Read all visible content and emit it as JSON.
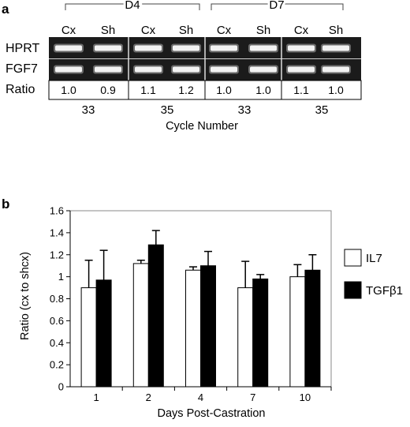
{
  "panel_a": {
    "letter": "a",
    "groups": [
      "D4",
      "D7"
    ],
    "lanes": [
      "Cx",
      "Sh",
      "Cx",
      "Sh",
      "Cx",
      "Sh",
      "Cx",
      "Sh"
    ],
    "row_labels": [
      "HPRT",
      "FGF7"
    ],
    "ratio_label": "Ratio",
    "ratios": [
      "1.0",
      "0.9",
      "1.1",
      "1.2",
      "1.0",
      "1.0",
      "1.1",
      "1.0"
    ],
    "cycles": [
      "33",
      "35",
      "33",
      "35"
    ],
    "cycle_axis_label": "Cycle Number"
  },
  "panel_b": {
    "letter": "b"
  },
  "chart_data": {
    "type": "bar",
    "categories": [
      "1",
      "2",
      "4",
      "7",
      "10"
    ],
    "series": [
      {
        "name": "IL7",
        "values": [
          0.9,
          1.12,
          1.06,
          0.9,
          1.0
        ],
        "errors": [
          0.25,
          0.03,
          0.03,
          0.24,
          0.11
        ],
        "color": "#ffffff"
      },
      {
        "name": "TGFβ1",
        "values": [
          0.97,
          1.29,
          1.1,
          0.98,
          1.06
        ],
        "errors": [
          0.27,
          0.13,
          0.13,
          0.04,
          0.14
        ],
        "color": "#000000"
      }
    ],
    "xlabel": "Days Post-Castration",
    "ylabel": "Ratio (cx to shcx)",
    "ylim": [
      0,
      1.6
    ],
    "yticks": [
      "0",
      "0.2",
      "0.4",
      "0.6",
      "0.8",
      "1",
      "1.2",
      "1.4",
      "1.6"
    ],
    "legend_position": "right",
    "grid": false
  }
}
